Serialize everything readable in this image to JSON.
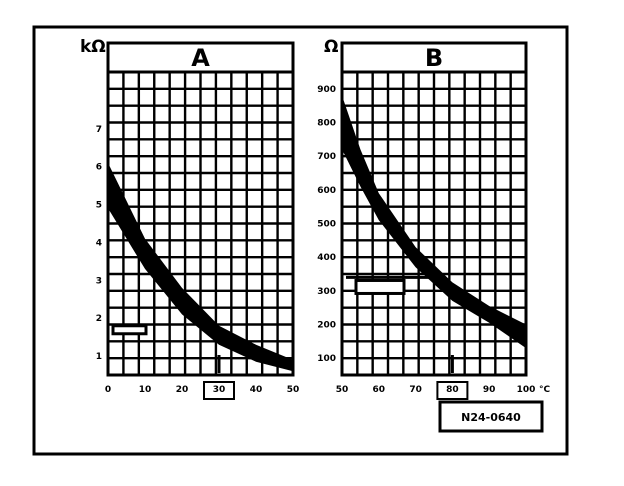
{
  "chart_data": [
    {
      "type": "line",
      "title": "A",
      "ylabel": "kΩ",
      "xlabel": "",
      "xlim": [
        0,
        50
      ],
      "ylim": [
        0.5,
        8.5
      ],
      "x_ticks": [
        "0",
        "10",
        "20",
        "30",
        "40",
        "50"
      ],
      "y_ticks": [
        "1",
        "2",
        "3",
        "4",
        "5",
        "6",
        "7"
      ],
      "band": {
        "upper": [
          [
            0,
            6.1
          ],
          [
            10,
            4.1
          ],
          [
            20,
            2.8
          ],
          [
            30,
            1.8
          ],
          [
            40,
            1.3
          ],
          [
            50,
            0.9
          ]
        ],
        "lower": [
          [
            0,
            4.9
          ],
          [
            10,
            3.3
          ],
          [
            20,
            2.1
          ],
          [
            30,
            1.3
          ],
          [
            40,
            0.85
          ],
          [
            50,
            0.6
          ]
        ]
      },
      "highlight_x": "30",
      "marker": "ohm-marker",
      "grid": true,
      "legend": "none"
    },
    {
      "type": "line",
      "title": "B",
      "ylabel": "Ω",
      "xlabel": "",
      "xlim": [
        50,
        100
      ],
      "ylim": [
        50,
        950
      ],
      "x_ticks": [
        "50",
        "60",
        "70",
        "80",
        "90",
        "100"
      ],
      "x_unit": "°C",
      "y_ticks": [
        "100",
        "200",
        "300",
        "400",
        "500",
        "600",
        "700",
        "800",
        "900"
      ],
      "band": {
        "upper": [
          [
            50,
            880
          ],
          [
            55,
            720
          ],
          [
            60,
            590
          ],
          [
            70,
            430
          ],
          [
            80,
            325
          ],
          [
            90,
            255
          ],
          [
            100,
            200
          ]
        ],
        "lower": [
          [
            50,
            720
          ],
          [
            55,
            610
          ],
          [
            60,
            510
          ],
          [
            70,
            370
          ],
          [
            80,
            270
          ],
          [
            90,
            205
          ],
          [
            100,
            130
          ]
        ]
      },
      "highlight_x": "80",
      "marker": "ohm-marker",
      "grid": true,
      "legend": "none"
    }
  ],
  "code_label": "N24-0640",
  "colors": {
    "ink": "#000000",
    "paper": "#ffffff"
  }
}
